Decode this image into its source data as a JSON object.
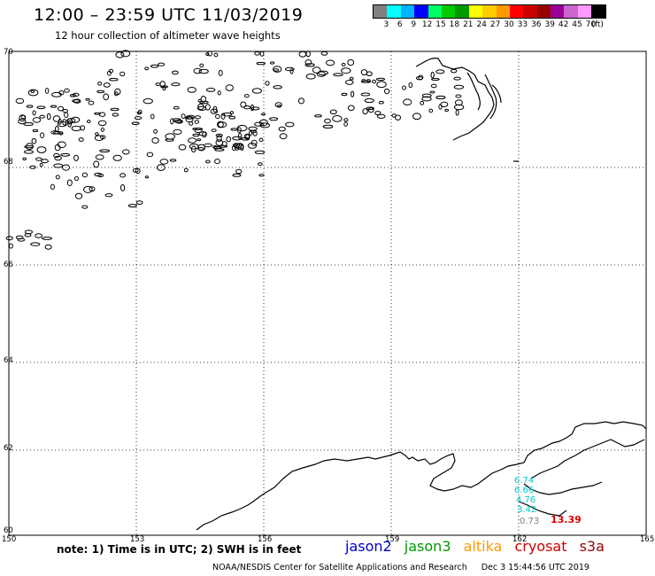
{
  "title": "12:00 – 23:59 UTC 11/03/2019",
  "subtitle": "12 hour collection of altimeter wave heights",
  "legend": {
    "colors": [
      "#808080",
      "#00ffff",
      "#00b4ff",
      "#0000ff",
      "#00ff66",
      "#00cc00",
      "#009900",
      "#ffff00",
      "#ffcc00",
      "#ff9900",
      "#ff0000",
      "#cc0000",
      "#990000",
      "#990099",
      "#cc66cc",
      "#ff99ff",
      "#000000"
    ],
    "labels": [
      "3",
      "6",
      "9",
      "12",
      "15",
      "18",
      "21",
      "24",
      "27",
      "30",
      "33",
      "36",
      "39",
      "42",
      "45",
      "70",
      "(ft)"
    ]
  },
  "axes": {
    "lon_labels": [
      "150",
      "153",
      "156",
      "159",
      "162",
      "165"
    ],
    "lat_labels": [
      "70",
      "68",
      "66",
      "64",
      "62",
      "60"
    ]
  },
  "observations": [
    {
      "value": "6.74",
      "color": "#00cccc"
    },
    {
      "value": "6.66",
      "color": "#00cccc"
    },
    {
      "value": "4.76",
      "color": "#00cccc"
    },
    {
      "value": "3.42",
      "color": "#00cccc"
    },
    {
      "value": "0.73",
      "color": "#808080"
    },
    {
      "value": "13.39",
      "color": "#dd0000"
    }
  ],
  "note": "note:  1) Time is in UTC;  2) SWH is in feet",
  "satellites": [
    {
      "name": "jason2",
      "color": "#0000cc"
    },
    {
      "name": "jason3",
      "color": "#009900"
    },
    {
      "name": "altika",
      "color": "#ff9900"
    },
    {
      "name": "cryosat",
      "color": "#cc0000"
    },
    {
      "name": "s3a",
      "color": "#990000"
    }
  ],
  "credit": "NOAA/NESDIS Center for Satellite Applications and Research",
  "credit_date": "Dec  3 15:44:56 UTC 2019"
}
